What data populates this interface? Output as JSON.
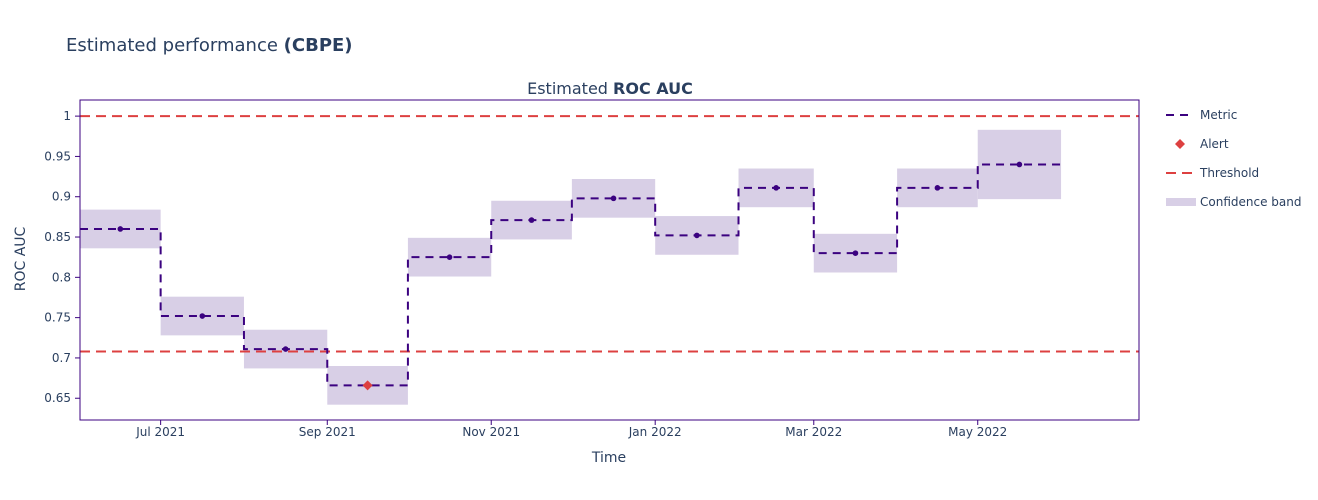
{
  "figure": {
    "title_prefix": "Estimated performance ",
    "title_bold": "(CBPE)"
  },
  "chart_data": {
    "type": "line",
    "title_prefix": "Estimated ",
    "title_bold": "ROC AUC",
    "xlabel": "Time",
    "ylabel": "ROC AUC",
    "x_tick_labels": [
      "Jul 2021",
      "Sep 2021",
      "Nov 2021",
      "Jan 2022",
      "Mar 2022",
      "May 2022"
    ],
    "x_ticks": [
      "2021-07-01",
      "2021-09-01",
      "2021-11-01",
      "2022-01-01",
      "2022-03-01",
      "2022-05-01"
    ],
    "y_ticks": [
      0.65,
      0.7,
      0.75,
      0.8,
      0.85,
      0.9,
      0.95,
      1
    ],
    "y_tick_labels": [
      "0.65",
      "0.7",
      "0.75",
      "0.8",
      "0.85",
      "0.9",
      "0.95",
      "1"
    ],
    "xlim": [
      "2021-06-01",
      "2022-06-30"
    ],
    "ylim": [
      0.623,
      1.02
    ],
    "chunks": [
      {
        "start": "2021-06-01",
        "end": "2021-07-01",
        "value": 0.86,
        "lower": 0.836,
        "upper": 0.884,
        "alert": false
      },
      {
        "start": "2021-07-01",
        "end": "2021-08-01",
        "value": 0.752,
        "lower": 0.728,
        "upper": 0.776,
        "alert": false
      },
      {
        "start": "2021-08-01",
        "end": "2021-09-01",
        "value": 0.711,
        "lower": 0.687,
        "upper": 0.735,
        "alert": false
      },
      {
        "start": "2021-09-01",
        "end": "2021-10-01",
        "value": 0.666,
        "lower": 0.642,
        "upper": 0.69,
        "alert": true
      },
      {
        "start": "2021-10-01",
        "end": "2021-11-01",
        "value": 0.825,
        "lower": 0.801,
        "upper": 0.849,
        "alert": false
      },
      {
        "start": "2021-11-01",
        "end": "2021-12-01",
        "value": 0.871,
        "lower": 0.847,
        "upper": 0.895,
        "alert": false
      },
      {
        "start": "2021-12-01",
        "end": "2022-01-01",
        "value": 0.898,
        "lower": 0.874,
        "upper": 0.922,
        "alert": false
      },
      {
        "start": "2022-01-01",
        "end": "2022-02-01",
        "value": 0.852,
        "lower": 0.828,
        "upper": 0.876,
        "alert": false
      },
      {
        "start": "2022-02-01",
        "end": "2022-03-01",
        "value": 0.911,
        "lower": 0.887,
        "upper": 0.935,
        "alert": false
      },
      {
        "start": "2022-03-01",
        "end": "2022-04-01",
        "value": 0.83,
        "lower": 0.806,
        "upper": 0.854,
        "alert": false
      },
      {
        "start": "2022-04-01",
        "end": "2022-05-01",
        "value": 0.911,
        "lower": 0.887,
        "upper": 0.935,
        "alert": false
      },
      {
        "start": "2022-05-01",
        "end": "2022-06-01",
        "value": 0.94,
        "lower": 0.897,
        "upper": 0.983,
        "alert": false
      }
    ],
    "thresholds": {
      "upper": 1.0,
      "lower": 0.708
    },
    "legend_position": "right",
    "legend": [
      {
        "key": "metric",
        "label": "Metric"
      },
      {
        "key": "alert",
        "label": "Alert"
      },
      {
        "key": "threshold",
        "label": "Threshold"
      },
      {
        "key": "band",
        "label": "Confidence band"
      }
    ],
    "colors": {
      "metric": "#3b0280",
      "alert": "#dd4040",
      "threshold": "#dd4040",
      "band": "#d8cfe6",
      "axis_frame": "#3b0280",
      "text": "#2a3f5f"
    }
  }
}
